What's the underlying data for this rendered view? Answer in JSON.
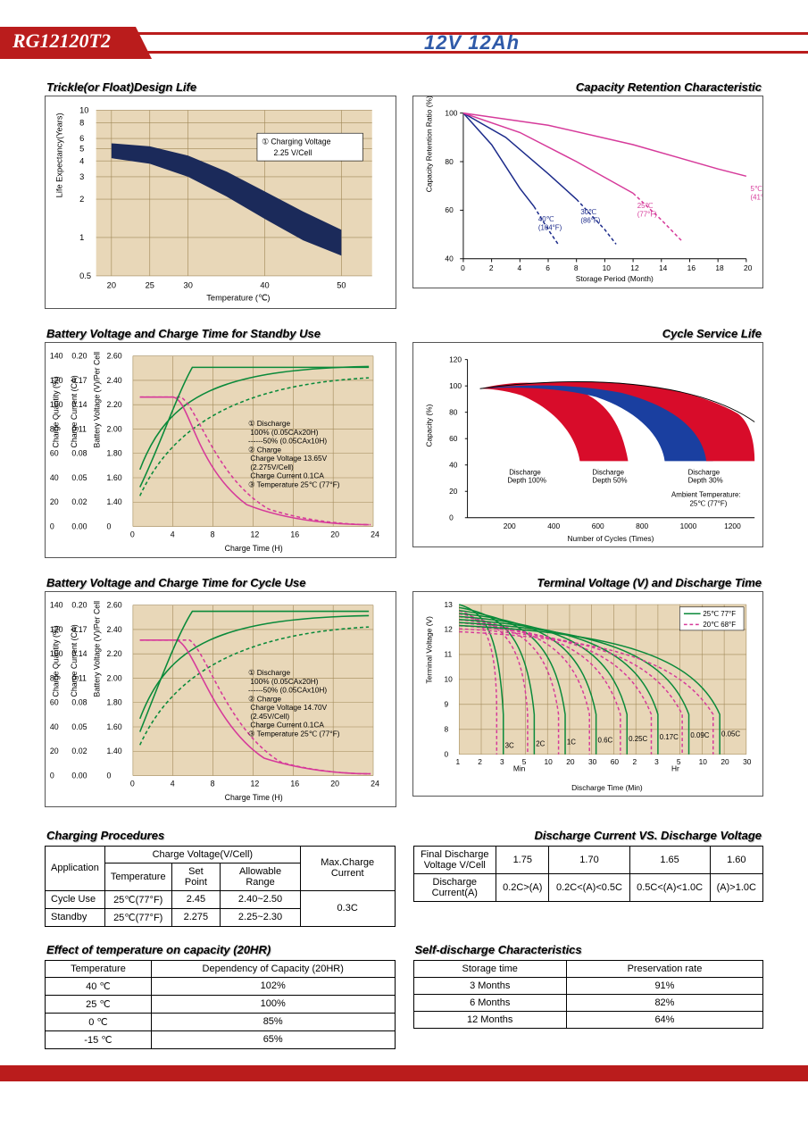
{
  "header": {
    "model": "RG12120T2",
    "spec": "12V 12Ah"
  },
  "chart_trickle": {
    "title": "Trickle(or Float)Design Life",
    "xlabel": "Temperature (℃)",
    "ylabel": "Life Expectancy(Years)",
    "xlim": [
      18,
      54
    ],
    "xticks": [
      20,
      25,
      30,
      40,
      50
    ],
    "yticks": [
      0.5,
      1,
      2,
      3,
      4,
      5,
      6,
      8,
      10
    ],
    "annotation": "① Charging Voltage\n2.25 V/Cell",
    "band_color": "#1b2a5a",
    "band": [
      {
        "x": 20,
        "y_top": 5.5,
        "y_bot": 4.2
      },
      {
        "x": 25,
        "y_top": 5.2,
        "y_bot": 3.8
      },
      {
        "x": 30,
        "y_top": 4.4,
        "y_bot": 3.0
      },
      {
        "x": 35,
        "y_top": 3.3,
        "y_bot": 2.1
      },
      {
        "x": 40,
        "y_top": 2.3,
        "y_bot": 1.4
      },
      {
        "x": 45,
        "y_top": 1.6,
        "y_bot": 0.95
      },
      {
        "x": 50,
        "y_top": 1.15,
        "y_bot": 0.72
      }
    ]
  },
  "chart_retention": {
    "title": "Capacity Retention Characteristic",
    "xlabel": "Storage Period (Month)",
    "ylabel": "Capacity Retention Ratio (%)",
    "xlim": [
      0,
      20
    ],
    "xticks": [
      0,
      2,
      4,
      6,
      8,
      10,
      12,
      14,
      16,
      18,
      20
    ],
    "ylim": [
      40,
      100
    ],
    "yticks": [
      40,
      60,
      80,
      100
    ],
    "series": [
      {
        "label": "40℃\n(104°F)",
        "color": "#1b2a8a",
        "pts": [
          [
            0,
            100
          ],
          [
            2,
            87
          ],
          [
            4,
            69
          ],
          [
            5,
            61.5
          ]
        ],
        "dash": [
          [
            5,
            61.5
          ],
          [
            6,
            52
          ],
          [
            6.7,
            46
          ]
        ]
      },
      {
        "label": "30℃\n(86°F)",
        "color": "#1b2a8a",
        "pts": [
          [
            0,
            100
          ],
          [
            3,
            90
          ],
          [
            6,
            75
          ],
          [
            8,
            64.5
          ]
        ],
        "dash": [
          [
            8,
            64.5
          ],
          [
            10,
            52
          ],
          [
            10.8,
            46
          ]
        ]
      },
      {
        "label": "25℃\n(77°F)",
        "color": "#d63a9a",
        "pts": [
          [
            0,
            100
          ],
          [
            4,
            92
          ],
          [
            8,
            80
          ],
          [
            12,
            67
          ]
        ],
        "dash": [
          [
            12,
            67
          ],
          [
            14,
            56
          ],
          [
            15.5,
            47
          ]
        ]
      },
      {
        "label": "5℃\n(41°F)",
        "color": "#d63a9a",
        "pts": [
          [
            0,
            100
          ],
          [
            6,
            95
          ],
          [
            12,
            87
          ],
          [
            18,
            77
          ],
          [
            20,
            74
          ]
        ],
        "dash": []
      }
    ]
  },
  "chart_standby": {
    "title": "Battery Voltage and Charge Time for Standby Use",
    "xlabel": "Charge Time (H)",
    "text": "① Discharge\n   100% (0.05CAx20H)\n------50% (0.05CAx10H)\n② Charge\n   Charge Voltage 13.65V\n   (2.275V/Cell)\n   Charge Current 0.1CA\n③ Temperature 25℃ (77°F)"
  },
  "chart_cycle_life": {
    "title": "Cycle Service Life",
    "xlabel": "Number of Cycles (Times)",
    "ylabel": "Capacity (%)",
    "note": "Ambient Temperature:\n25℃ (77°F)",
    "bands": [
      {
        "label": "Discharge\nDepth 100%",
        "color": "#d80c2a"
      },
      {
        "label": "Discharge\nDepth 50%",
        "color": "#1a3fa0"
      },
      {
        "label": "Discharge\nDepth 30%",
        "color": "#d80c2a"
      }
    ]
  },
  "chart_cycle_charge": {
    "title": "Battery Voltage and Charge Time for Cycle Use",
    "xlabel": "Charge Time (H)",
    "text": "① Discharge\n   100% (0.05CAx20H)\n------50% (0.05CAx10H)\n② Charge\n   Charge Voltage 14.70V\n   (2.45V/Cell)\n   Charge Current 0.1CA\n③ Temperature 25℃ (77°F)"
  },
  "chart_discharge_time": {
    "title": "Terminal Voltage (V) and Discharge Time",
    "xlabel": "Discharge Time (Min)",
    "ylabel": "Terminal Voltage (V)",
    "legend": [
      {
        "label": "25℃ 77°F",
        "color": "#0a8a3a",
        "dash": false
      },
      {
        "label": "20℃ 68°F",
        "color": "#d63a9a",
        "dash": true
      }
    ],
    "rates": [
      "3C",
      "2C",
      "1C",
      "0.6C",
      "0.25C",
      "0.17C",
      "0.09C",
      "0.05C"
    ]
  },
  "table_charging": {
    "title": "Charging Procedures",
    "head_app": "Application",
    "head_cv": "Charge Voltage(V/Cell)",
    "head_max": "Max.Charge Current",
    "head_temp": "Temperature",
    "head_set": "Set Point",
    "head_range": "Allowable Range",
    "rows": [
      {
        "app": "Cycle Use",
        "temp": "25℃(77°F)",
        "set": "2.45",
        "range": "2.40~2.50"
      },
      {
        "app": "Standby",
        "temp": "25℃(77°F)",
        "set": "2.275",
        "range": "2.25~2.30"
      }
    ],
    "max": "0.3C"
  },
  "table_discharge": {
    "title": "Discharge Current VS. Discharge Voltage",
    "row1_label": "Final Discharge\nVoltage V/Cell",
    "row1": [
      "1.75",
      "1.70",
      "1.65",
      "1.60"
    ],
    "row2_label": "Discharge\nCurrent(A)",
    "row2": [
      "0.2C>(A)",
      "0.2C<(A)<0.5C",
      "0.5C<(A)<1.0C",
      "(A)>1.0C"
    ]
  },
  "table_temp_capacity": {
    "title": "Effect of temperature on capacity (20HR)",
    "head": [
      "Temperature",
      "Dependency of Capacity (20HR)"
    ],
    "rows": [
      [
        "40 ℃",
        "102%"
      ],
      [
        "25 ℃",
        "100%"
      ],
      [
        "0 ℃",
        "85%"
      ],
      [
        "-15 ℃",
        "65%"
      ]
    ]
  },
  "table_selfdischarge": {
    "title": "Self-discharge Characteristics",
    "head": [
      "Storage time",
      "Preservation rate"
    ],
    "rows": [
      [
        "3 Months",
        "91%"
      ],
      [
        "6 Months",
        "82%"
      ],
      [
        "12 Months",
        "64%"
      ]
    ]
  }
}
